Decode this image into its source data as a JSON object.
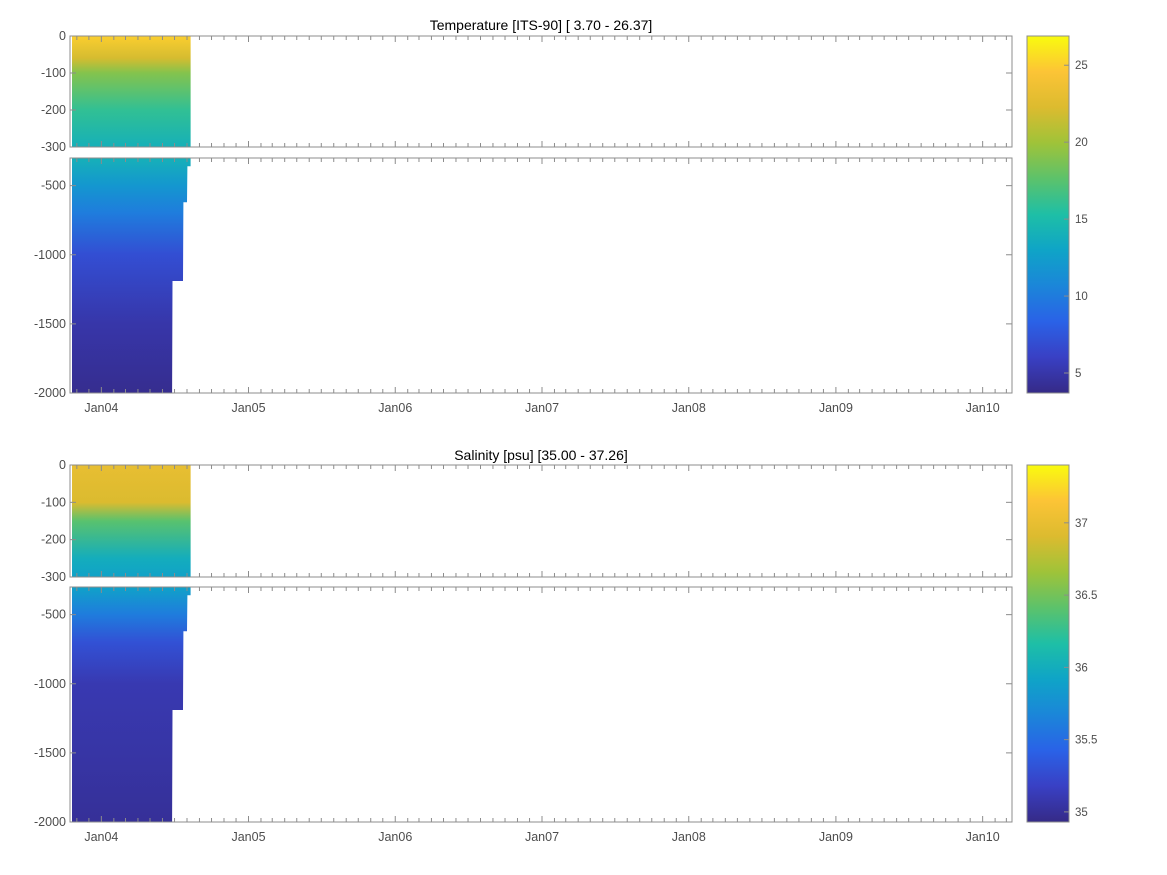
{
  "colors": {
    "parula": [
      "#352a87",
      "#3940c4",
      "#2a62e7",
      "#1b86d9",
      "#0fa4c7",
      "#1ebfa6",
      "#5cc26b",
      "#9fc339",
      "#dcbb2f",
      "#fcc436",
      "#f9fb0e"
    ],
    "axis": "#8c8c8c",
    "tick_text": "#4d4d4d",
    "contour": "#a0a0a0"
  },
  "chart_data": [
    {
      "type": "heatmap",
      "title": "Temperature [ITS-90]   [ 3.70 - 26.37]",
      "xlabel": "",
      "ylabel": "",
      "x_ticks": [
        "Jan04",
        "Jan05",
        "Jan06",
        "Jan07",
        "Jan08",
        "Jan09",
        "Jan10"
      ],
      "x_range": [
        "2003-10-15",
        "2010-03-15"
      ],
      "data_x_range": [
        "2003-10-20",
        "2004-08-10"
      ],
      "upper_panel": {
        "ylim": [
          -300,
          0
        ],
        "y_ticks": [
          0,
          -100,
          -200,
          -300
        ]
      },
      "lower_panel": {
        "ylim": [
          -2000,
          -300
        ],
        "y_ticks": [
          -500,
          -1000,
          -1500,
          -2000
        ]
      },
      "colorbar": {
        "range": [
          3.7,
          26.9
        ],
        "ticks": [
          5,
          10,
          15,
          20,
          25
        ]
      },
      "depth_profile": [
        {
          "depth": 0,
          "value": 25
        },
        {
          "depth": -60,
          "value": 22
        },
        {
          "depth": -100,
          "value": 19
        },
        {
          "depth": -200,
          "value": 16
        },
        {
          "depth": -300,
          "value": 14
        },
        {
          "depth": -500,
          "value": 12
        },
        {
          "depth": -700,
          "value": 10
        },
        {
          "depth": -1000,
          "value": 7
        },
        {
          "depth": -1500,
          "value": 5
        },
        {
          "depth": -2000,
          "value": 4
        }
      ],
      "max_depth_by_time": [
        {
          "date": "2003-10-20",
          "depth": -2000
        },
        {
          "date": "2004-06-25",
          "depth": -2000
        },
        {
          "date": "2004-06-26",
          "depth": -1190
        },
        {
          "date": "2004-07-22",
          "depth": -1190
        },
        {
          "date": "2004-07-23",
          "depth": -620
        },
        {
          "date": "2004-08-01",
          "depth": -620
        },
        {
          "date": "2004-08-02",
          "depth": -360
        },
        {
          "date": "2004-08-10",
          "depth": -360
        }
      ]
    },
    {
      "type": "heatmap",
      "title": "Salinity [psu]   [35.00 - 37.26]",
      "xlabel": "",
      "ylabel": "",
      "x_ticks": [
        "Jan04",
        "Jan05",
        "Jan06",
        "Jan07",
        "Jan08",
        "Jan09",
        "Jan10"
      ],
      "x_range": [
        "2003-10-15",
        "2010-03-15"
      ],
      "data_x_range": [
        "2003-10-20",
        "2004-08-10"
      ],
      "upper_panel": {
        "ylim": [
          -300,
          0
        ],
        "y_ticks": [
          0,
          -100,
          -200,
          -300
        ]
      },
      "lower_panel": {
        "ylim": [
          -2000,
          -300
        ],
        "y_ticks": [
          -500,
          -1000,
          -1500,
          -2000
        ]
      },
      "colorbar": {
        "range": [
          34.93,
          37.4
        ],
        "ticks": [
          35,
          35.5,
          36,
          36.5,
          37
        ]
      },
      "depth_profile": [
        {
          "depth": 0,
          "value": 37.0
        },
        {
          "depth": -100,
          "value": 36.9
        },
        {
          "depth": -150,
          "value": 36.4
        },
        {
          "depth": -250,
          "value": 36.0
        },
        {
          "depth": -300,
          "value": 35.9
        },
        {
          "depth": -500,
          "value": 35.6
        },
        {
          "depth": -700,
          "value": 35.3
        },
        {
          "depth": -1000,
          "value": 35.1
        },
        {
          "depth": -1500,
          "value": 35.05
        },
        {
          "depth": -2000,
          "value": 35.0
        }
      ],
      "max_depth_by_time": [
        {
          "date": "2003-10-20",
          "depth": -2000
        },
        {
          "date": "2004-06-25",
          "depth": -2000
        },
        {
          "date": "2004-06-26",
          "depth": -1190
        },
        {
          "date": "2004-07-22",
          "depth": -1190
        },
        {
          "date": "2004-07-23",
          "depth": -620
        },
        {
          "date": "2004-08-01",
          "depth": -620
        },
        {
          "date": "2004-08-02",
          "depth": -360
        },
        {
          "date": "2004-08-10",
          "depth": -360
        }
      ]
    }
  ]
}
